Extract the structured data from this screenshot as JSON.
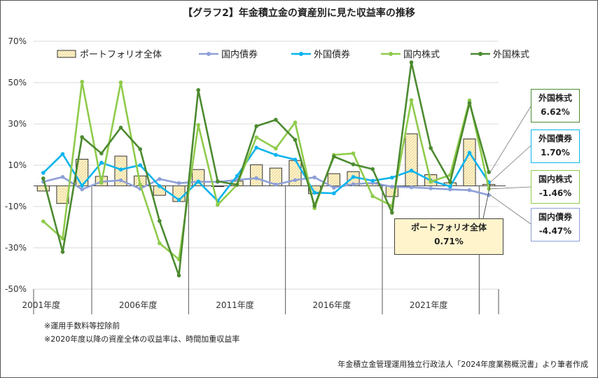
{
  "chart_data": {
    "type": "bar",
    "title": "【グラフ2】年金積立金の資産別に見た収益率の推移",
    "yticks": [
      "70%",
      "50%",
      "30%",
      "10%",
      "-10%",
      "-30%",
      "-50%"
    ],
    "ylim": [
      -50,
      70
    ],
    "xlabels": [
      "2001年度",
      "2006年度",
      "2011年度",
      "2016年度",
      "2021年度"
    ],
    "x": [
      "2001",
      "2002",
      "2003",
      "2004",
      "2005",
      "2006",
      "2007",
      "2008",
      "2009",
      "2010",
      "2011",
      "2012",
      "2013",
      "2014",
      "2015",
      "2016",
      "2017",
      "2018",
      "2019",
      "2020",
      "2021",
      "2022",
      "2023",
      "2024"
    ],
    "legend_position": "top",
    "series": [
      {
        "name": "ポートフォリオ全体",
        "kind": "bar",
        "color": "#fff4cc",
        "values": [
          -2.5,
          -8.5,
          12.9,
          4.6,
          14.4,
          4.8,
          -4.6,
          -7.6,
          7.9,
          -0.3,
          2.3,
          10.2,
          8.6,
          12.3,
          -3.8,
          5.9,
          6.9,
          1.5,
          -5.2,
          25.2,
          5.4,
          1.5,
          22.7,
          0.71
        ]
      },
      {
        "name": "国内債券",
        "kind": "line",
        "color": "#8ea0d8",
        "values": [
          2.0,
          4.3,
          -1.7,
          2.0,
          2.7,
          -1.4,
          3.3,
          1.3,
          2.0,
          1.9,
          2.9,
          3.7,
          0.6,
          2.8,
          4.1,
          -0.9,
          0.8,
          1.4,
          -0.4,
          -0.7,
          -1.2,
          -1.7,
          -2.1,
          -4.47
        ]
      },
      {
        "name": "外国債券",
        "kind": "line",
        "color": "#0bb4ee",
        "values": [
          6.3,
          15.4,
          0.1,
          11.2,
          7.9,
          10.0,
          -0.1,
          -6.8,
          2.1,
          -7.3,
          4.8,
          18.5,
          15.0,
          12.7,
          -3.3,
          -3.6,
          4.3,
          2.5,
          4.0,
          7.4,
          2.6,
          -0.3,
          16.0,
          1.7
        ]
      },
      {
        "name": "国内株式",
        "kind": "line",
        "color": "#8fcb4b",
        "values": [
          -17.2,
          -25.5,
          50.4,
          1.4,
          50.1,
          0.6,
          -27.8,
          -35.6,
          29.5,
          -9.2,
          0.5,
          23.5,
          18.1,
          30.7,
          -10.8,
          15.0,
          15.7,
          -5.0,
          -9.7,
          41.5,
          2.0,
          5.2,
          41.4,
          -1.46
        ]
      },
      {
        "name": "外国株式",
        "kind": "line",
        "color": "#4c8a30",
        "values": [
          3.6,
          -32.0,
          23.6,
          15.7,
          28.2,
          17.8,
          -17.0,
          -43.4,
          46.4,
          2.2,
          0.5,
          28.9,
          32.0,
          22.3,
          -9.7,
          14.2,
          10.4,
          8.1,
          -13.0,
          59.8,
          18.3,
          1.8,
          40.1,
          6.62
        ]
      }
    ],
    "callouts": [
      {
        "name": "外国株式",
        "value": "6.62%",
        "border": "#4c8a30"
      },
      {
        "name": "外国債券",
        "value": "1.70%",
        "border": "#0bb4ee"
      },
      {
        "name": "国内株式",
        "value": "-1.46%",
        "border": "#8fcb4b"
      },
      {
        "name": "国内債券",
        "value": "-4.47%",
        "border": "#8ea0d8"
      }
    ],
    "portfolio_callout": {
      "name": "ポートフォリオ全体",
      "value": "0.71%"
    }
  },
  "notes": [
    "※運用手数料等控除前",
    "※2020年度以降の資産全体の収益率は、時間加重収益率"
  ],
  "source": "年金積立金管理運用独立行政法人「2024年度業務概況書」より筆者作成"
}
